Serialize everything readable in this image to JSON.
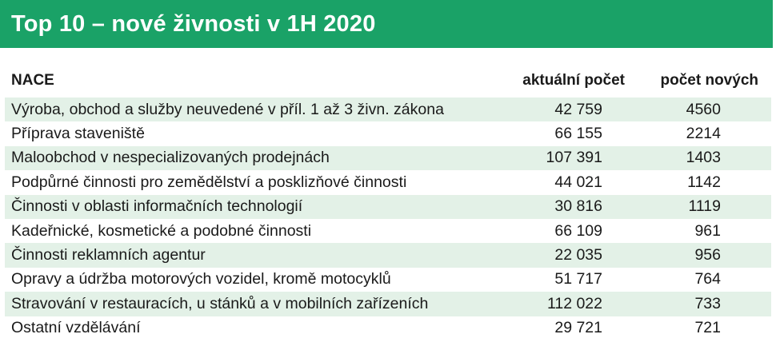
{
  "title": "Top 10 – nové živnosti v 1H 2020",
  "columns": {
    "nace": "NACE",
    "current": "aktuální počet",
    "new": "počet nových"
  },
  "rows": [
    {
      "nace": "Výroba, obchod a služby neuvedené v příl. 1 až 3 živn. zákona",
      "current": "42 759",
      "new": "4560"
    },
    {
      "nace": "Příprava staveniště",
      "current": "66 155",
      "new": "2214"
    },
    {
      "nace": "Maloobchod v nespecializovaných prodejnách",
      "current": "107 391",
      "new": "1403"
    },
    {
      "nace": "Podpůrné činnosti pro zemědělství a posklizňové činnosti",
      "current": "44 021",
      "new": "1142"
    },
    {
      "nace": "Činnosti v oblasti informačních technologií",
      "current": "30 816",
      "new": "1119"
    },
    {
      "nace": "Kadeřnické, kosmetické a podobné činnosti",
      "current": "66 109",
      "new": "961"
    },
    {
      "nace": "Činnosti reklamních agentur",
      "current": "22 035",
      "new": "956"
    },
    {
      "nace": "Opravy a údržba motorových vozidel, kromě motocyklů",
      "current": "51 717",
      "new": "764"
    },
    {
      "nace": "Stravování v restauracích, u stánků a v mobilních zařízeních",
      "current": "112 022",
      "new": "733"
    },
    {
      "nace": "Ostatní vzdělávání",
      "current": "29 721",
      "new": "721"
    }
  ],
  "colors": {
    "title_bg": "#1aa267",
    "row_shade": "#e3f1e7"
  }
}
